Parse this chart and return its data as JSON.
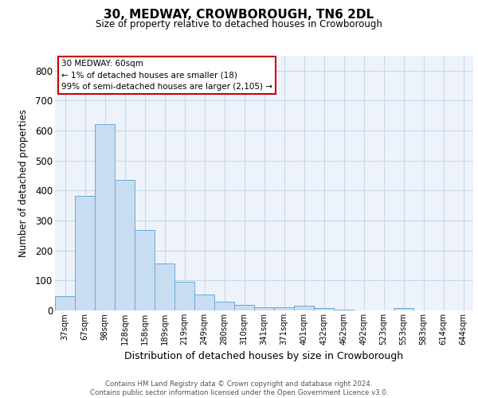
{
  "title": "30, MEDWAY, CROWBOROUGH, TN6 2DL",
  "subtitle": "Size of property relative to detached houses in Crowborough",
  "xlabel": "Distribution of detached houses by size in Crowborough",
  "ylabel": "Number of detached properties",
  "categories": [
    "37sqm",
    "67sqm",
    "98sqm",
    "128sqm",
    "158sqm",
    "189sqm",
    "219sqm",
    "249sqm",
    "280sqm",
    "310sqm",
    "341sqm",
    "371sqm",
    "401sqm",
    "432sqm",
    "462sqm",
    "492sqm",
    "523sqm",
    "553sqm",
    "583sqm",
    "614sqm",
    "644sqm"
  ],
  "values": [
    47,
    382,
    622,
    435,
    268,
    157,
    96,
    52,
    29,
    18,
    10,
    10,
    15,
    8,
    3,
    0,
    0,
    7,
    0,
    0,
    0
  ],
  "bar_color": "#c9ddf2",
  "bar_edge_color": "#6aaad4",
  "ylim": [
    0,
    850
  ],
  "yticks": [
    0,
    100,
    200,
    300,
    400,
    500,
    600,
    700,
    800
  ],
  "annotation_title": "30 MEDWAY: 60sqm",
  "annotation_line2": "← 1% of detached houses are smaller (18)",
  "annotation_line3": "99% of semi-detached houses are larger (2,105) →",
  "annotation_box_color": "#ffffff",
  "annotation_box_edge": "#cc0000",
  "footer_line1": "Contains HM Land Registry data © Crown copyright and database right 2024.",
  "footer_line2": "Contains public sector information licensed under the Open Government Licence v3.0.",
  "grid_color": "#c8d8ea",
  "background_color": "#eef3fb"
}
